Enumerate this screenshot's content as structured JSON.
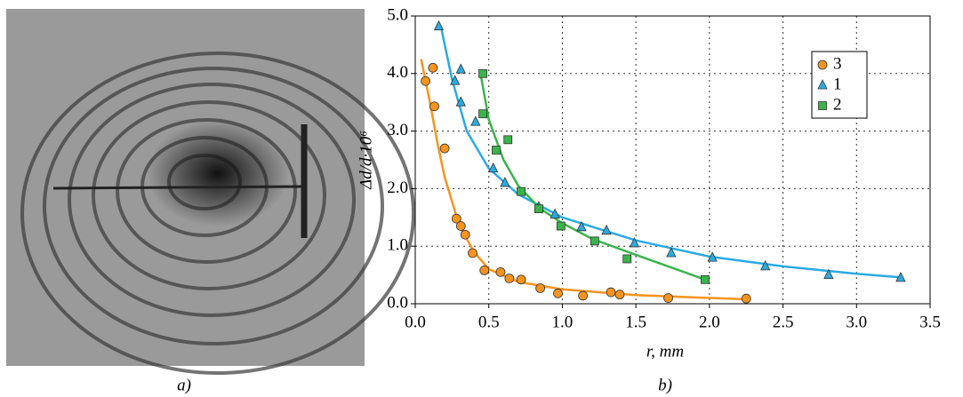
{
  "captions": [
    "a)",
    "b)"
  ],
  "chart_data": {
    "type": "scatter",
    "xlabel": "r, mm",
    "ylabel": "Δd/d·10⁶",
    "xlim": [
      0,
      3.5
    ],
    "ylim": [
      0,
      5
    ],
    "xticks": [
      {
        "value": 0,
        "label": "0.0"
      },
      {
        "value": 0.5,
        "label": "0.5"
      },
      {
        "value": 1,
        "label": "1.0"
      },
      {
        "value": 1.5,
        "label": "1.5"
      },
      {
        "value": 2,
        "label": "2.0"
      },
      {
        "value": 2.5,
        "label": "2.5"
      },
      {
        "value": 3,
        "label": "3.0"
      },
      {
        "value": 3.5,
        "label": "3.5"
      }
    ],
    "yticks": [
      {
        "value": 0,
        "label": "0.0"
      },
      {
        "value": 1,
        "label": "1.0"
      },
      {
        "value": 2,
        "label": "2.0"
      },
      {
        "value": 3,
        "label": "3.0"
      },
      {
        "value": 4,
        "label": "4.0"
      },
      {
        "value": 5,
        "label": "5.0"
      }
    ],
    "grid": true,
    "legend": "upper right",
    "series": [
      {
        "name": "3",
        "color": "#f7941d",
        "marker": "circle",
        "x": [
          0.07,
          0.12,
          0.13,
          0.2,
          0.28,
          0.31,
          0.34,
          0.39,
          0.47,
          0.58,
          0.64,
          0.72,
          0.85,
          0.97,
          1.14,
          1.33,
          1.39,
          1.72,
          2.25
        ],
        "values": [
          3.87,
          4.1,
          3.43,
          2.7,
          1.48,
          1.35,
          1.2,
          0.88,
          0.58,
          0.55,
          0.44,
          0.42,
          0.27,
          0.18,
          0.14,
          0.2,
          0.16,
          0.1,
          0.09
        ]
      },
      {
        "name": "1",
        "color": "#29abe2",
        "marker": "triangle",
        "x": [
          0.16,
          0.27,
          0.31,
          0.31,
          0.41,
          0.53,
          0.61,
          0.84,
          0.95,
          1.13,
          1.3,
          1.49,
          1.74,
          2.02,
          2.38,
          2.81,
          3.3
        ],
        "values": [
          4.82,
          3.87,
          4.07,
          3.5,
          3.16,
          2.35,
          2.1,
          1.68,
          1.55,
          1.33,
          1.27,
          1.05,
          0.88,
          0.8,
          0.65,
          0.5,
          0.45
        ]
      },
      {
        "name": "2",
        "color": "#39b54a",
        "marker": "square",
        "x": [
          0.46,
          0.46,
          0.55,
          0.63,
          0.72,
          0.84,
          0.99,
          1.22,
          1.44,
          1.97
        ],
        "values": [
          4.0,
          3.3,
          2.67,
          2.85,
          1.95,
          1.65,
          1.35,
          1.09,
          0.78,
          0.42
        ]
      }
    ],
    "lines": [
      {
        "color": "#f7941d",
        "x": [
          0.04,
          0.1,
          0.15,
          0.2,
          0.3,
          0.4,
          0.5,
          0.7,
          1.0,
          1.5,
          2.0,
          2.25
        ],
        "values": [
          4.25,
          3.5,
          2.8,
          2.2,
          1.35,
          0.9,
          0.6,
          0.38,
          0.25,
          0.15,
          0.1,
          0.08
        ]
      },
      {
        "color": "#29abe2",
        "x": [
          0.18,
          0.25,
          0.35,
          0.5,
          0.7,
          1.0,
          1.5,
          2.0,
          2.5,
          3.0,
          3.3
        ],
        "values": [
          4.75,
          3.9,
          3.0,
          2.35,
          1.9,
          1.5,
          1.1,
          0.82,
          0.65,
          0.52,
          0.46
        ]
      },
      {
        "color": "#39b54a",
        "x": [
          0.44,
          0.5,
          0.6,
          0.7,
          0.85,
          1.0,
          1.2,
          1.5,
          1.97
        ],
        "values": [
          4.05,
          3.2,
          2.5,
          2.05,
          1.65,
          1.4,
          1.13,
          0.85,
          0.42
        ]
      }
    ]
  }
}
